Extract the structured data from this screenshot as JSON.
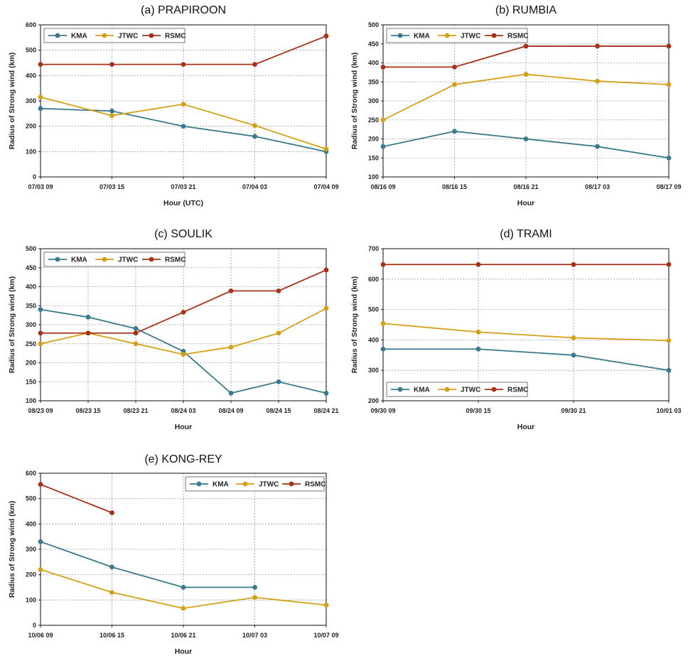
{
  "colors": {
    "KMA": "#3a7a8c",
    "JTWC": "#d4a017",
    "RSMC": "#a53218"
  },
  "chart_data": [
    {
      "type": "line",
      "title": "(a) PRAPIROON",
      "xlabel": "Hour (UTC)",
      "ylabel": "Radius of Strong wind (km)",
      "categories": [
        "07/03 09",
        "07/03 15",
        "07/03 21",
        "07/04 03",
        "07/04 09"
      ],
      "ylim": [
        0,
        600
      ],
      "yticks": [
        0,
        100,
        200,
        300,
        400,
        500,
        600
      ],
      "legend_position": "top-left",
      "series": [
        {
          "name": "KMA",
          "values": [
            270,
            260,
            200,
            160,
            100
          ]
        },
        {
          "name": "JTWC",
          "values": [
            315,
            242,
            287,
            203,
            110
          ]
        },
        {
          "name": "RSMC",
          "values": [
            444,
            444,
            444,
            444,
            556
          ]
        }
      ]
    },
    {
      "type": "line",
      "title": "(b) RUMBIA",
      "xlabel": "Hour",
      "ylabel": "Radius of Strong wind (km)",
      "categories": [
        "08/16 09",
        "08/16 15",
        "08/16 21",
        "08/17 03",
        "08/17 09"
      ],
      "ylim": [
        100,
        500
      ],
      "yticks": [
        100,
        150,
        200,
        250,
        300,
        350,
        400,
        450,
        500
      ],
      "legend_position": "top-left",
      "series": [
        {
          "name": "KMA",
          "values": [
            180,
            220,
            200,
            180,
            150
          ]
        },
        {
          "name": "JTWC",
          "values": [
            250,
            343,
            370,
            352,
            343
          ]
        },
        {
          "name": "RSMC",
          "values": [
            389,
            389,
            444,
            444,
            444
          ]
        }
      ]
    },
    {
      "type": "line",
      "title": "(c) SOULIK",
      "xlabel": "Hour",
      "ylabel": "Radius of Strong wind (km)",
      "categories": [
        "08/23 09",
        "08/23 15",
        "08/23 21",
        "08/24 03",
        "08/24 09",
        "08/24 15",
        "08/24 21"
      ],
      "ylim": [
        100,
        500
      ],
      "yticks": [
        100,
        150,
        200,
        250,
        300,
        350,
        400,
        450,
        500
      ],
      "legend_position": "top-left",
      "series": [
        {
          "name": "KMA",
          "values": [
            340,
            320,
            290,
            230,
            120,
            150,
            120
          ]
        },
        {
          "name": "JTWC",
          "values": [
            250,
            278,
            250,
            222,
            241,
            278,
            343
          ]
        },
        {
          "name": "RSMC",
          "values": [
            278,
            278,
            278,
            333,
            389,
            389,
            444
          ]
        }
      ]
    },
    {
      "type": "line",
      "title": "(d) TRAMI",
      "xlabel": "Hour",
      "ylabel": "Radius of Strong wind (km)",
      "categories": [
        "09/30 09",
        "09/30 15",
        "09/30 21",
        "10/01 03"
      ],
      "ylim": [
        200,
        700
      ],
      "yticks": [
        200,
        300,
        400,
        500,
        600,
        700
      ],
      "legend_position": "bottom-left",
      "series": [
        {
          "name": "KMA",
          "values": [
            370,
            370,
            350,
            300
          ]
        },
        {
          "name": "JTWC",
          "values": [
            454,
            426,
            407,
            398
          ]
        },
        {
          "name": "RSMC",
          "values": [
            648,
            648,
            648,
            648
          ]
        }
      ]
    },
    {
      "type": "line",
      "title": "(e) KONG-REY",
      "xlabel": "Hour",
      "ylabel": "Radius of Strong wind (km)",
      "categories": [
        "10/06 09",
        "10/06 15",
        "10/06 21",
        "10/07 03",
        "10/07 09"
      ],
      "ylim": [
        0,
        600
      ],
      "yticks": [
        0,
        100,
        200,
        300,
        400,
        500,
        600
      ],
      "legend_position": "top-right",
      "series": [
        {
          "name": "KMA",
          "values": [
            330,
            230,
            150,
            150,
            null
          ]
        },
        {
          "name": "JTWC",
          "values": [
            220,
            130,
            67,
            110,
            80
          ]
        },
        {
          "name": "RSMC",
          "values": [
            556,
            444,
            null,
            null,
            null
          ]
        }
      ]
    }
  ]
}
